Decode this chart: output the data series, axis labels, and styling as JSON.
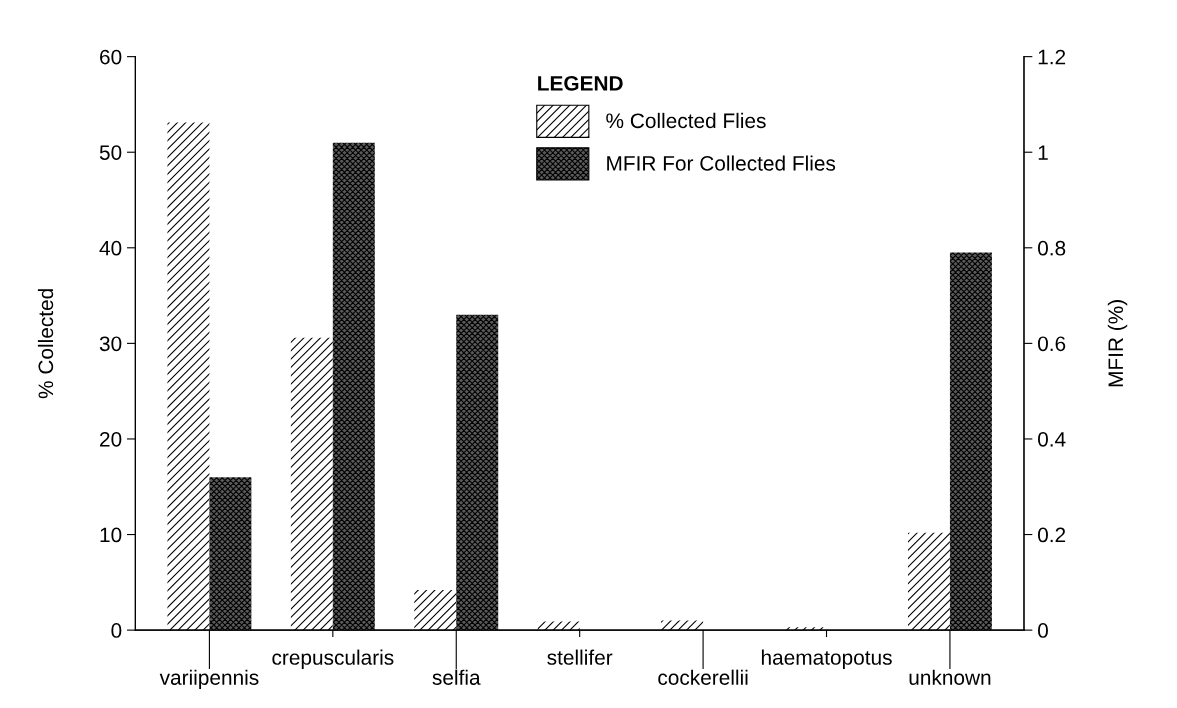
{
  "chart_data": {
    "type": "bar",
    "ylabel": "% Collected",
    "y2label": "MFIR (%)",
    "legend_title": "LEGEND",
    "categories": [
      "variipennis",
      "crepuscularis",
      "selfia",
      "stellifer",
      "cockerellii",
      "haematopotus",
      "unknown"
    ],
    "series": [
      {
        "name": "% Collected Flies",
        "color": "#ffffff",
        "values": [
          53.1,
          30.6,
          4.2,
          0.9,
          1.0,
          0.3,
          10.2
        ]
      },
      {
        "name": "MFIR For Collected Flies",
        "color": "#5a5a5a",
        "axis": "y2",
        "values": [
          0.32,
          1.02,
          0.66,
          0,
          0,
          0,
          0.79
        ]
      }
    ],
    "ylim": [
      0,
      60
    ],
    "yticks": [
      0,
      10,
      20,
      30,
      40,
      50,
      60
    ],
    "y2lim": [
      0,
      1.2
    ],
    "y2ticks": [
      0,
      0.2,
      0.4,
      0.6,
      0.8,
      1,
      1.2
    ],
    "legend": "top",
    "grid": false
  }
}
